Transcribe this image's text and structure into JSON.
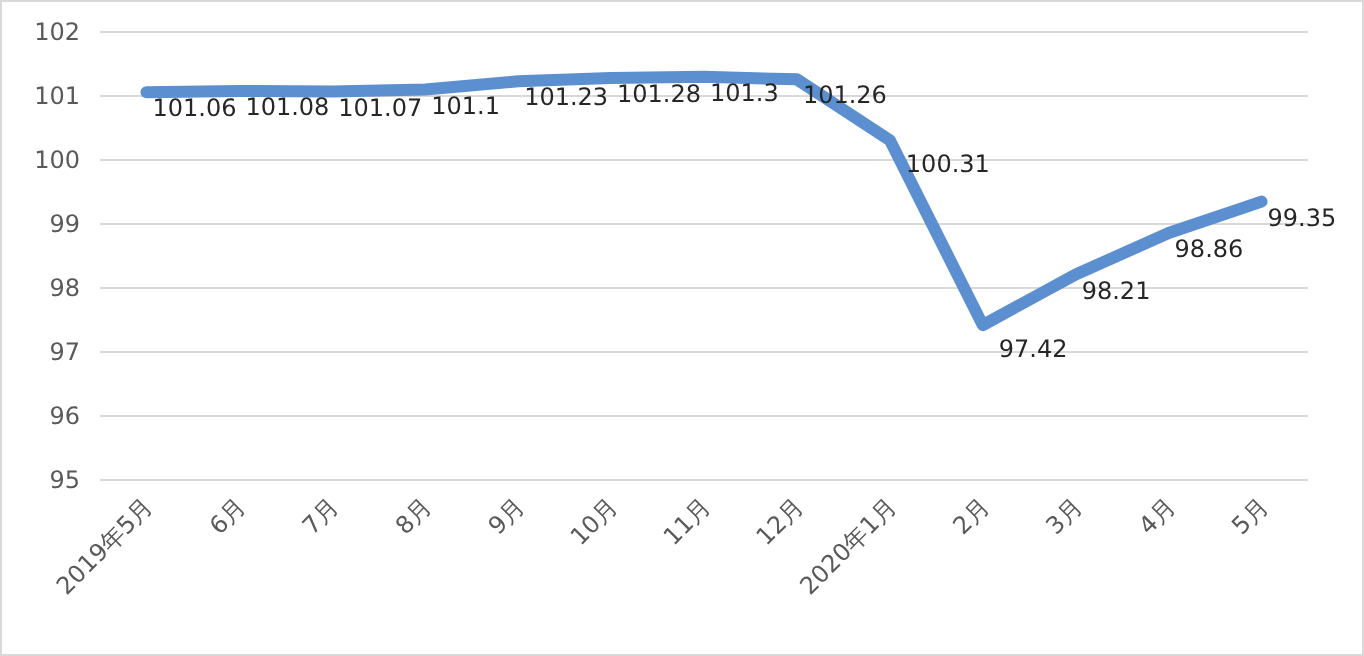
{
  "chart_data": {
    "type": "line",
    "categories": [
      "2019年5月",
      "6月",
      "7月",
      "8月",
      "9月",
      "10月",
      "11月",
      "12月",
      "2020年1月",
      "2月",
      "3月",
      "4月",
      "5月"
    ],
    "values": [
      101.06,
      101.08,
      101.07,
      101.1,
      101.23,
      101.28,
      101.3,
      101.26,
      100.31,
      97.42,
      98.21,
      98.86,
      99.35
    ],
    "color": "#5b8fd0",
    "ylim": [
      95,
      102
    ],
    "yticks": [
      95,
      96,
      97,
      98,
      99,
      100,
      101,
      102
    ],
    "grid": "y",
    "data_labels": true
  }
}
